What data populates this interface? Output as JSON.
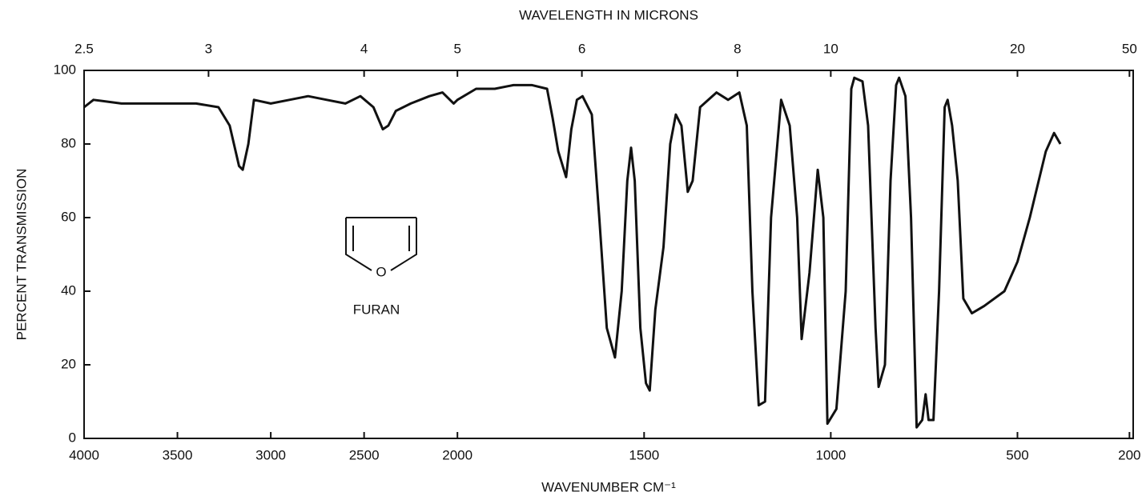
{
  "chart_data": {
    "type": "line",
    "title": "WAVELENGTH IN MICRONS",
    "xlabel": "WAVENUMBER CM⁻¹",
    "ylabel": "PERCENT TRANSMISSION",
    "annotations": [
      "FURAN",
      "O"
    ],
    "color": "#111111",
    "xlim": [
      4000,
      190
    ],
    "x_scale_break": 2000,
    "x_scale_ratio": 2,
    "xticks": [
      4000,
      3500,
      3000,
      2500,
      2000,
      1500,
      1000,
      500,
      200
    ],
    "x2ticks": [
      2.5,
      3,
      4,
      5,
      6,
      8,
      10,
      20,
      50
    ],
    "ylim": [
      0,
      100
    ],
    "yticks": [
      0,
      20,
      40,
      60,
      80,
      100
    ],
    "x": [
      4000,
      3950,
      3800,
      3600,
      3400,
      3280,
      3220,
      3170,
      3150,
      3120,
      3090,
      3000,
      2900,
      2800,
      2700,
      2600,
      2520,
      2450,
      2400,
      2370,
      2330,
      2250,
      2150,
      2080,
      2020,
      2000,
      1950,
      1900,
      1850,
      1800,
      1760,
      1745,
      1730,
      1709,
      1695,
      1680,
      1665,
      1640,
      1620,
      1600,
      1578,
      1560,
      1545,
      1535,
      1525,
      1510,
      1495,
      1485,
      1470,
      1448,
      1430,
      1415,
      1400,
      1383,
      1370,
      1350,
      1306,
      1275,
      1245,
      1225,
      1210,
      1193,
      1176,
      1160,
      1133,
      1110,
      1090,
      1078,
      1057,
      1035,
      1020,
      1009,
      985,
      960,
      945,
      937,
      915,
      900,
      880,
      872,
      855,
      840,
      825,
      817,
      800,
      785,
      770,
      755,
      746,
      738,
      725,
      710,
      695,
      687,
      675,
      660,
      645,
      622,
      589,
      535,
      500,
      467,
      424,
      402,
      385
    ],
    "values": [
      90,
      92,
      91,
      91,
      91,
      90,
      85,
      74,
      73,
      80,
      92,
      91,
      92,
      93,
      92,
      91,
      93,
      90,
      84,
      85,
      89,
      91,
      93,
      94,
      91,
      92,
      95,
      95,
      96,
      96,
      95,
      87,
      78,
      71,
      84,
      92,
      93,
      88,
      60,
      30,
      22,
      40,
      70,
      79,
      70,
      30,
      15,
      13,
      35,
      52,
      80,
      88,
      85,
      67,
      70,
      90,
      94,
      92,
      94,
      85,
      40,
      9,
      10,
      60,
      92,
      85,
      60,
      27,
      45,
      73,
      60,
      4,
      8,
      40,
      95,
      98,
      97,
      85,
      30,
      14,
      20,
      70,
      96,
      98,
      93,
      60,
      3,
      5,
      12,
      5,
      5,
      40,
      90,
      92,
      85,
      70,
      38,
      34,
      36,
      40,
      48,
      60,
      78,
      83,
      80
    ]
  }
}
